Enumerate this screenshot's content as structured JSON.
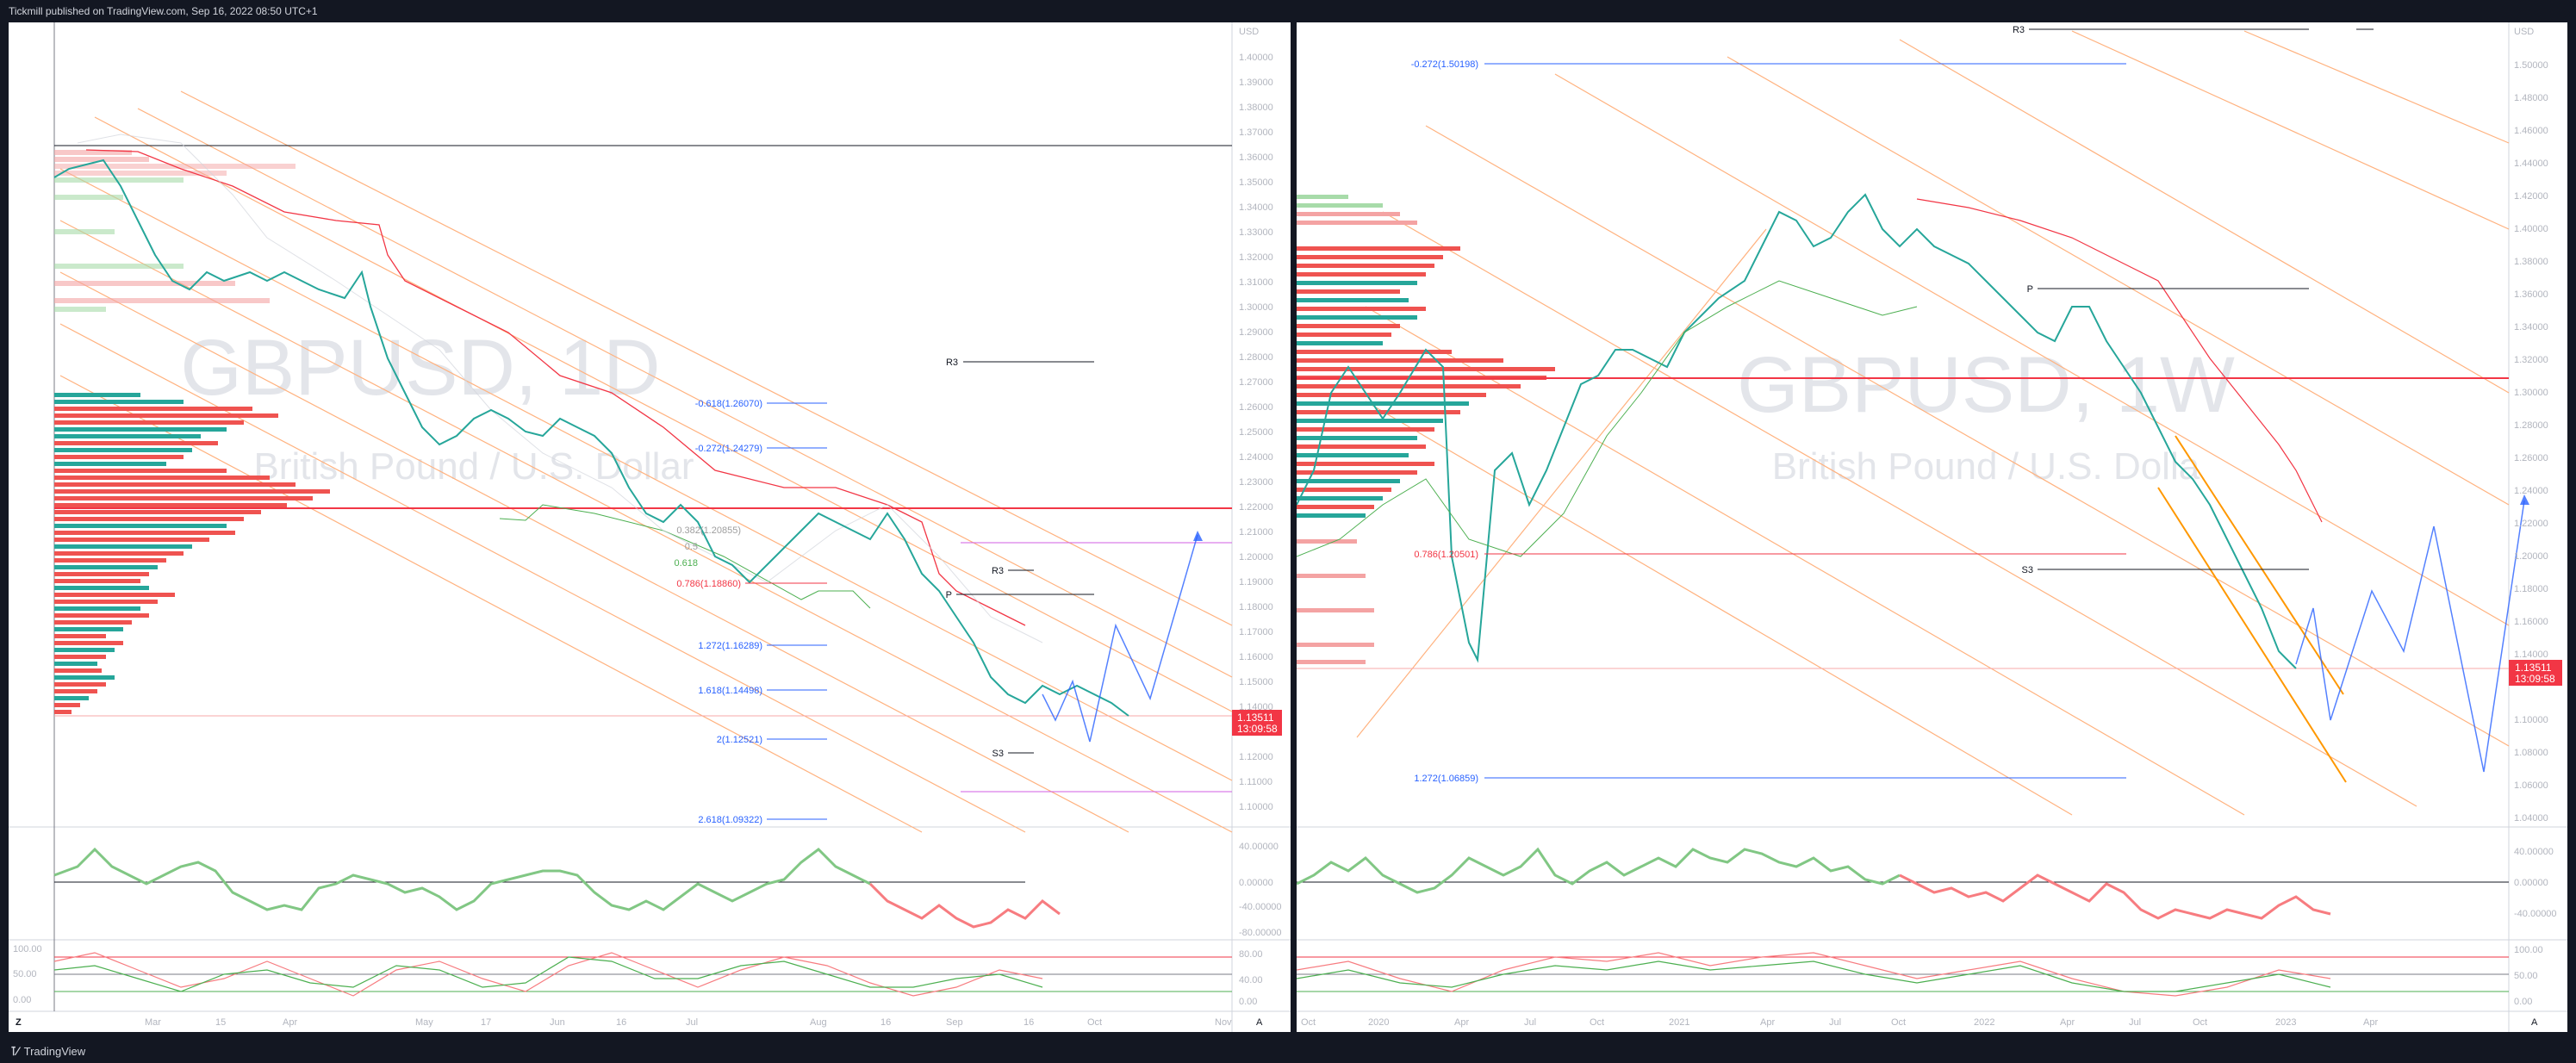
{
  "header": {
    "publisher": "Tickmill published on TradingView.com, Sep 16, 2022 08:50 UTC+1"
  },
  "left": {
    "watermark_symbol": "GBPUSD, 1D",
    "watermark_name": "British Pound / U.S. Dollar",
    "currency": "USD",
    "price_ticks": [
      "1.40000",
      "1.39000",
      "1.38000",
      "1.37000",
      "1.36000",
      "1.35000",
      "1.34000",
      "1.33000",
      "1.32000",
      "1.31000",
      "1.30000",
      "1.29000",
      "1.28000",
      "1.27000",
      "1.26000",
      "1.25000",
      "1.24000",
      "1.23000",
      "1.22000",
      "1.21000",
      "1.20000",
      "1.19000",
      "1.18000",
      "1.17000",
      "1.16000",
      "1.15000",
      "1.14000",
      "1.13000",
      "1.12000",
      "1.11000",
      "1.10000"
    ],
    "last_price": "1.13511",
    "countdown": "13:09:58",
    "fib_labels": [
      "-0.618(1.26070)",
      "-0.272(1.24279)",
      "0.382(1.20855)",
      "0.5",
      "0.618",
      "0.786(1.18860)",
      "1.272(1.16289)",
      "1.618(1.14498)",
      "2(1.12521)",
      "2.618(1.09322)"
    ],
    "pivot_labels": [
      "R3",
      "R3",
      "P",
      "S3"
    ],
    "time_ticks": [
      "Mar",
      "15",
      "Apr",
      "May",
      "17",
      "Jun",
      "16",
      "Jul",
      "Aug",
      "16",
      "Sep",
      "16",
      "Oct",
      "Nov"
    ],
    "rsi_ticks": [
      "40.00000",
      "0.00000",
      "-40.00000",
      "-80.00000"
    ],
    "stoch_ticks": [
      "100.00",
      "50.00",
      "0.00"
    ],
    "stoch_ticks_right": [
      "80.00",
      "40.00",
      "0.00"
    ]
  },
  "right": {
    "watermark_symbol": "GBPUSD, 1W",
    "watermark_name": "British Pound / U.S. Dolla",
    "currency": "USD",
    "price_ticks": [
      "1.50000",
      "1.48000",
      "1.46000",
      "1.44000",
      "1.42000",
      "1.40000",
      "1.38000",
      "1.36000",
      "1.34000",
      "1.32000",
      "1.30000",
      "1.28000",
      "1.26000",
      "1.24000",
      "1.22000",
      "1.20000",
      "1.18000",
      "1.16000",
      "1.14000",
      "1.12000",
      "1.10000",
      "1.08000",
      "1.06000",
      "1.04000"
    ],
    "last_price": "1.13511",
    "countdown": "13:09:58",
    "fib_labels": [
      "-0.272(1.50198)",
      "0.786(1.20501)",
      "1.272(1.06859)"
    ],
    "pivot_labels": [
      "R3",
      "P",
      "S3"
    ],
    "time_ticks": [
      "Oct",
      "2020",
      "Apr",
      "Jul",
      "Oct",
      "2021",
      "Apr",
      "Jul",
      "Oct",
      "2022",
      "Apr",
      "Jul",
      "Oct",
      "2023",
      "Apr"
    ],
    "rsi_ticks": [
      "40.00000",
      "0.00000",
      "-40.00000"
    ],
    "stoch_ticks": [
      "100.00",
      "50.00",
      "0.00"
    ]
  },
  "footer": {
    "brand": "TradingView"
  }
}
